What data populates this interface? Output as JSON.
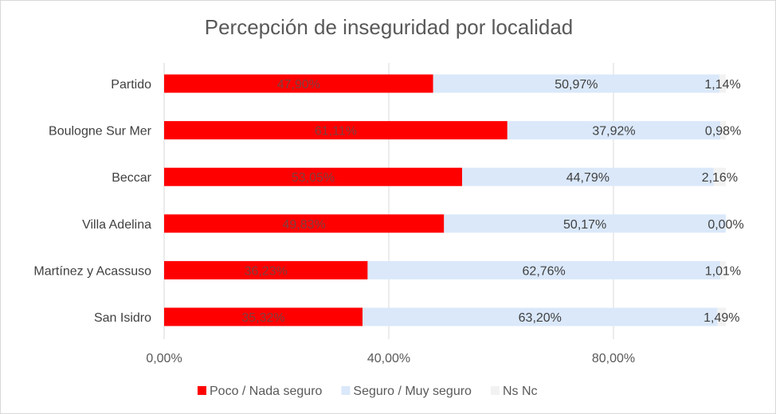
{
  "chart_data": {
    "type": "bar",
    "orientation": "horizontal",
    "stacked": true,
    "title": "Percepción de inseguridad por localidad",
    "categories": [
      "Partido",
      "Boulogne Sur Mer",
      "Beccar",
      "Villa Adelina",
      "Martínez y Acassuso",
      "San Isidro"
    ],
    "series": [
      {
        "name": "Poco / Nada seguro",
        "color": "#ff0000",
        "values": [
          47.9,
          61.11,
          53.05,
          49.83,
          36.23,
          35.32
        ],
        "labels": [
          "47,90%",
          "61,11%",
          "53,05%",
          "49,83%",
          "36,23%",
          "35,32%"
        ]
      },
      {
        "name": "Seguro / Muy seguro",
        "color": "#dae8fa",
        "values": [
          50.97,
          37.92,
          44.79,
          50.17,
          62.76,
          63.2
        ],
        "labels": [
          "50,97%",
          "37,92%",
          "44,79%",
          "50,17%",
          "62,76%",
          "63,20%"
        ]
      },
      {
        "name": "Ns Nc",
        "color": "#f2f2f2",
        "values": [
          1.14,
          0.98,
          2.16,
          0.0,
          1.01,
          1.49
        ],
        "labels": [
          "1,14%",
          "0,98%",
          "2,16%",
          "0,00%",
          "1,01%",
          "1,49%"
        ]
      }
    ],
    "xlim": [
      0,
      100
    ],
    "xticks": [
      0,
      40,
      80
    ],
    "xtick_labels": [
      "0,00%",
      "40,00%",
      "80,00%"
    ],
    "grid": true,
    "legend": "bottom"
  }
}
